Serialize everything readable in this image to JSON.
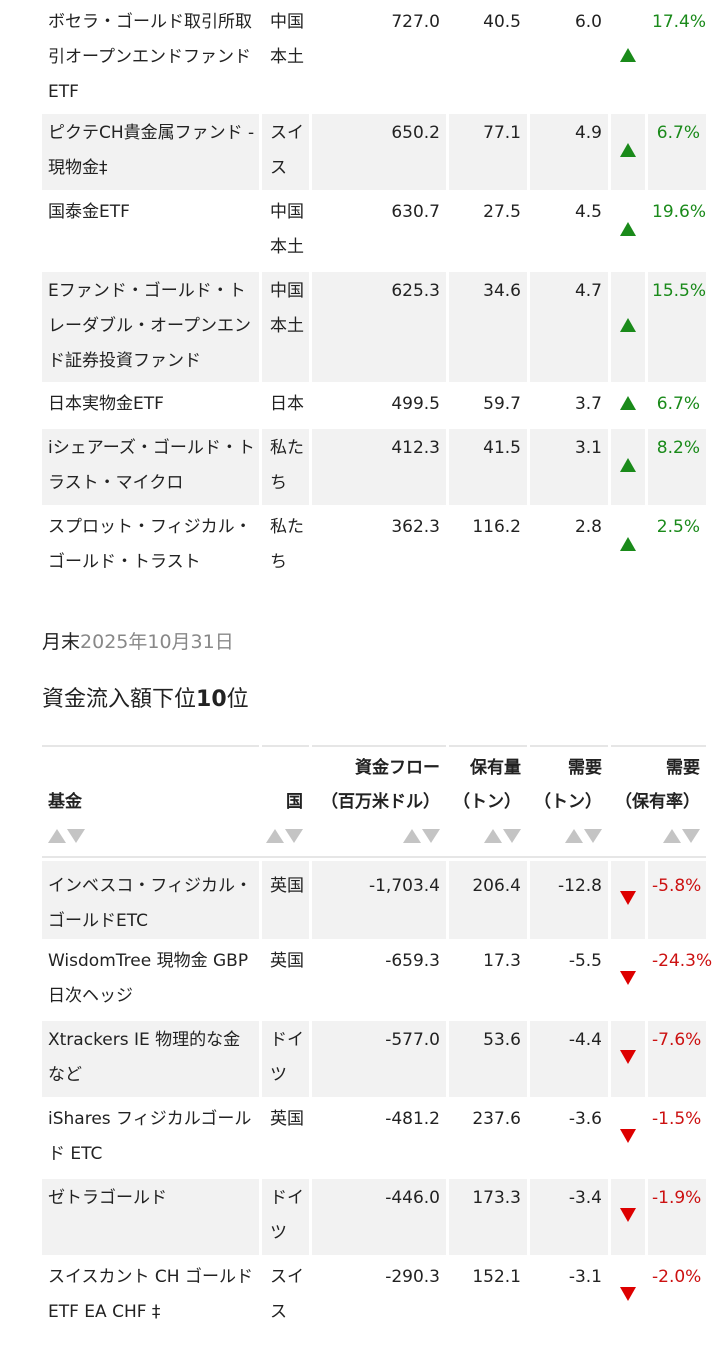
{
  "top_table": {
    "rows": [
      {
        "name": "ボセラ・ゴールド取引所取引オープンエンドファンドETF",
        "country": "中国本土",
        "flow": "727.0",
        "holdings": "40.5",
        "demand": "6.0",
        "pct": "17.4%"
      },
      {
        "name": "ピクテCH貴金属ファンド - 現物金‡",
        "country": "スイス",
        "flow": "650.2",
        "holdings": "77.1",
        "demand": "4.9",
        "pct": "6.7%"
      },
      {
        "name": "国泰金ETF",
        "country": "中国本土",
        "flow": "630.7",
        "holdings": "27.5",
        "demand": "4.5",
        "pct": "19.6%"
      },
      {
        "name": "Eファンド・ゴールド・トレーダブル・オープンエンド証券投資ファンド",
        "country": "中国本土",
        "flow": "625.3",
        "holdings": "34.6",
        "demand": "4.7",
        "pct": "15.5%"
      },
      {
        "name": "日本実物金ETF",
        "country": "日本",
        "flow": "499.5",
        "holdings": "59.7",
        "demand": "3.7",
        "pct": "6.7%"
      },
      {
        "name": "iシェアーズ・ゴールド・トラスト・マイクロ",
        "country": "私たち",
        "flow": "412.3",
        "holdings": "41.5",
        "demand": "3.1",
        "pct": "8.2%"
      },
      {
        "name": "スプロット・フィジカル・ゴールド・トラスト",
        "country": "私たち",
        "flow": "362.3",
        "holdings": "116.2",
        "demand": "2.8",
        "pct": "2.5%"
      }
    ]
  },
  "date_line": {
    "prefix": "月末",
    "date": "2025年10月31日"
  },
  "section": {
    "title_a": "資金流入額下位",
    "title_b": "10",
    "title_c": "位"
  },
  "bottom_table": {
    "headers": {
      "fund": "基金",
      "country": "国",
      "flow_1": "資金フロー",
      "flow_2": "（百万米ドル）",
      "holdings_1": "保有量",
      "holdings_2": "（トン）",
      "demand_1": "需要",
      "demand_2": "（トン）",
      "pct_1": "需要",
      "pct_2": "（保有率）"
    },
    "rows": [
      {
        "name": "インベスコ・フィジカル・ゴールドETC",
        "country": "英国",
        "flow": "-1,703.4",
        "holdings": "206.4",
        "demand": "-12.8",
        "pct": "-5.8%"
      },
      {
        "name": "WisdomTree 現物金 GBP 日次ヘッジ",
        "country": "英国",
        "flow": "-659.3",
        "holdings": "17.3",
        "demand": "-5.5",
        "pct": "-24.3%"
      },
      {
        "name": "Xtrackers IE 物理的な金など",
        "country": "ドイツ",
        "flow": "-577.0",
        "holdings": "53.6",
        "demand": "-4.4",
        "pct": "-7.6%"
      },
      {
        "name": "iShares フィジカルゴールド ETC",
        "country": "英国",
        "flow": "-481.2",
        "holdings": "237.6",
        "demand": "-3.6",
        "pct": "-1.5%"
      },
      {
        "name": "ゼトラゴールド",
        "country": "ドイツ",
        "flow": "-446.0",
        "holdings": "173.3",
        "demand": "-3.4",
        "pct": "-1.9%"
      },
      {
        "name": "スイスカント CH ゴールド ETF EA CHF ‡",
        "country": "スイス",
        "flow": "-290.3",
        "holdings": "152.1",
        "demand": "-3.1",
        "pct": "-2.0%"
      }
    ]
  },
  "colors": {
    "positive": "#1a8a1a",
    "negative": "#cc1111",
    "up_arrow": "#1a8a1a",
    "down_arrow": "#dd0000",
    "row_shade": "#f2f2f2",
    "sort_icon": "#c4c4c4"
  },
  "icons": {
    "up": "triangle-up-icon",
    "down": "triangle-down-icon",
    "sort": "sort-icon"
  }
}
